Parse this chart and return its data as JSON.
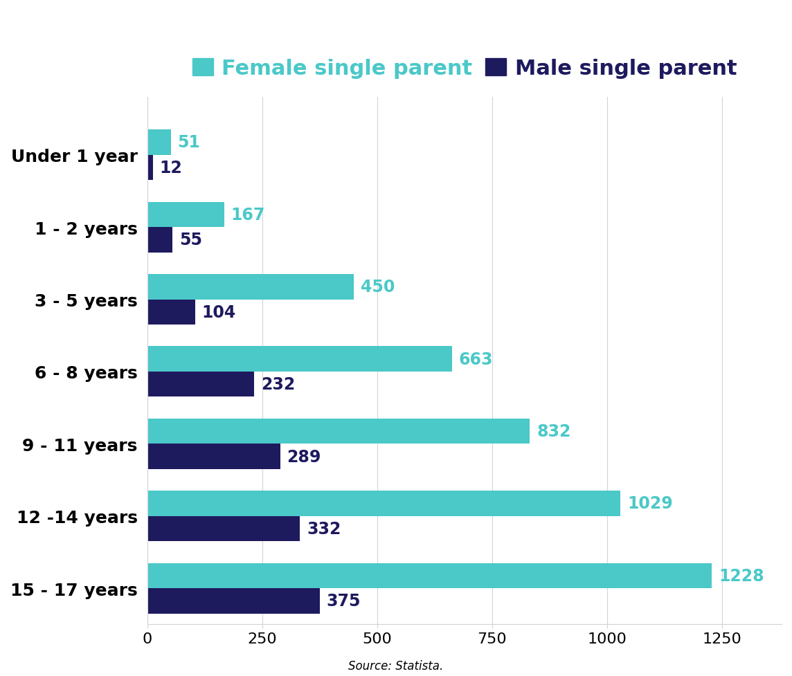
{
  "categories": [
    "Under 1 year",
    "1 - 2 years",
    "3 - 5 years",
    "6 - 8 years",
    "9 - 11 years",
    "12 -14 years",
    "15 - 17 years"
  ],
  "female_values": [
    51,
    167,
    450,
    663,
    832,
    1029,
    1228
  ],
  "male_values": [
    12,
    55,
    104,
    232,
    289,
    332,
    375
  ],
  "female_color": "#4BC8C8",
  "male_color": "#1E1A5E",
  "female_label": "Female single parent",
  "male_label": "Male single parent",
  "xlim": [
    0,
    1380
  ],
  "xticks": [
    0,
    250,
    500,
    750,
    1000,
    1250
  ],
  "source_text": "Source: Statista.",
  "background_color": "#ffffff",
  "bar_height": 0.35,
  "legend_fontsize": 22,
  "label_fontsize": 18,
  "tick_fontsize": 16,
  "annotation_fontsize": 17,
  "source_fontsize": 12
}
